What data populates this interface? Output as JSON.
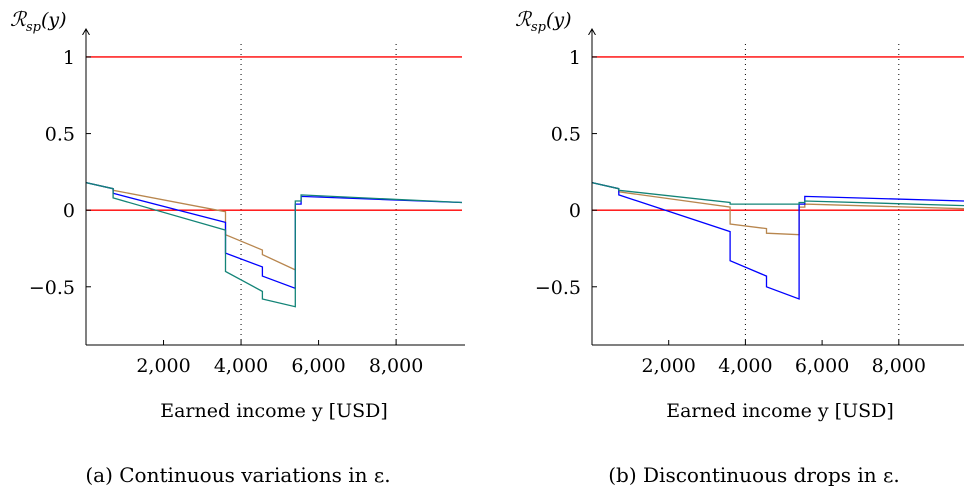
{
  "chart_data": [
    {
      "type": "line",
      "panel_label": "(a)",
      "caption": "Continuous variations in ε.",
      "ylabel": "ℛsp(y)",
      "ylabel_main": "ℛ",
      "ylabel_sub": "sp",
      "ylabel_arg": "(y)",
      "xlabel": "Earned income y [USD]",
      "xlim": [
        0,
        9700
      ],
      "ylim": [
        -0.88,
        1.15
      ],
      "xticks": [
        2000,
        4000,
        6000,
        8000
      ],
      "xtick_labels": [
        "2,000",
        "4,000",
        "6,000",
        "8,000"
      ],
      "yticks": [
        1,
        0.5,
        0,
        -0.5
      ],
      "ytick_labels": [
        "1",
        "0.5",
        "0",
        "−0.5"
      ],
      "hlines": [
        {
          "y": 1,
          "color": "#ff0000"
        },
        {
          "y": 0,
          "color": "#ff0000"
        }
      ],
      "vlines": [
        {
          "x": 4000,
          "style": "dotted"
        },
        {
          "x": 8000,
          "style": "dotted"
        }
      ],
      "series": [
        {
          "color": "#b8864e",
          "x": [
            0,
            700,
            700,
            3600,
            3600,
            4550,
            4550,
            5400
          ],
          "y": [
            0.18,
            0.14,
            0.13,
            -0.01,
            -0.16,
            -0.26,
            -0.29,
            -0.39
          ]
        },
        {
          "color": "#0000ff",
          "x": [
            0,
            700,
            700,
            3600,
            3600,
            4550,
            4550,
            5400,
            5400,
            5550,
            5550,
            9700
          ],
          "y": [
            0.18,
            0.14,
            0.11,
            -0.08,
            -0.28,
            -0.37,
            -0.43,
            -0.51,
            0.04,
            0.04,
            0.09,
            0.05
          ]
        },
        {
          "color": "#138477",
          "x": [
            0,
            700,
            700,
            3600,
            3600,
            4550,
            4550,
            5400,
            5400,
            5550,
            5550,
            9700
          ],
          "y": [
            0.18,
            0.14,
            0.08,
            -0.13,
            -0.4,
            -0.53,
            -0.58,
            -0.63,
            0.06,
            0.06,
            0.1,
            0.05
          ]
        }
      ]
    },
    {
      "type": "line",
      "panel_label": "(b)",
      "caption": "Discontinuous drops in ε.",
      "ylabel": "ℛsp(y)",
      "ylabel_main": "ℛ",
      "ylabel_sub": "sp",
      "ylabel_arg": "(y)",
      "xlabel": "Earned income y [USD]",
      "xlim": [
        0,
        9700
      ],
      "ylim": [
        -0.88,
        1.15
      ],
      "xticks": [
        2000,
        4000,
        6000,
        8000
      ],
      "xtick_labels": [
        "2,000",
        "4,000",
        "6,000",
        "8,000"
      ],
      "yticks": [
        1,
        0.5,
        0,
        -0.5
      ],
      "ytick_labels": [
        "1",
        "0.5",
        "0",
        "−0.5"
      ],
      "hlines": [
        {
          "y": 1,
          "color": "#ff0000"
        },
        {
          "y": 0,
          "color": "#ff0000"
        }
      ],
      "vlines": [
        {
          "x": 4000,
          "style": "dotted"
        },
        {
          "x": 8000,
          "style": "dotted"
        }
      ],
      "series": [
        {
          "color": "#b8864e",
          "x": [
            0,
            700,
            700,
            3600,
            3600,
            4550,
            4550,
            5400,
            5400,
            5550,
            5550,
            9700
          ],
          "y": [
            0.18,
            0.14,
            0.12,
            0.02,
            -0.09,
            -0.12,
            -0.15,
            -0.16,
            0.02,
            0.02,
            0.04,
            0.01
          ]
        },
        {
          "color": "#0000ff",
          "x": [
            0,
            700,
            700,
            3600,
            3600,
            4550,
            4550,
            5400,
            5400,
            5550,
            5550,
            9700
          ],
          "y": [
            0.18,
            0.14,
            0.1,
            -0.14,
            -0.33,
            -0.43,
            -0.5,
            -0.58,
            0.04,
            0.04,
            0.09,
            0.06
          ]
        },
        {
          "color": "#138477",
          "x": [
            0,
            700,
            700,
            3600,
            3600,
            5400,
            5400,
            5550,
            5550,
            9700
          ],
          "y": [
            0.18,
            0.14,
            0.13,
            0.05,
            0.04,
            0.04,
            0.05,
            0.05,
            0.06,
            0.03
          ]
        }
      ]
    }
  ]
}
